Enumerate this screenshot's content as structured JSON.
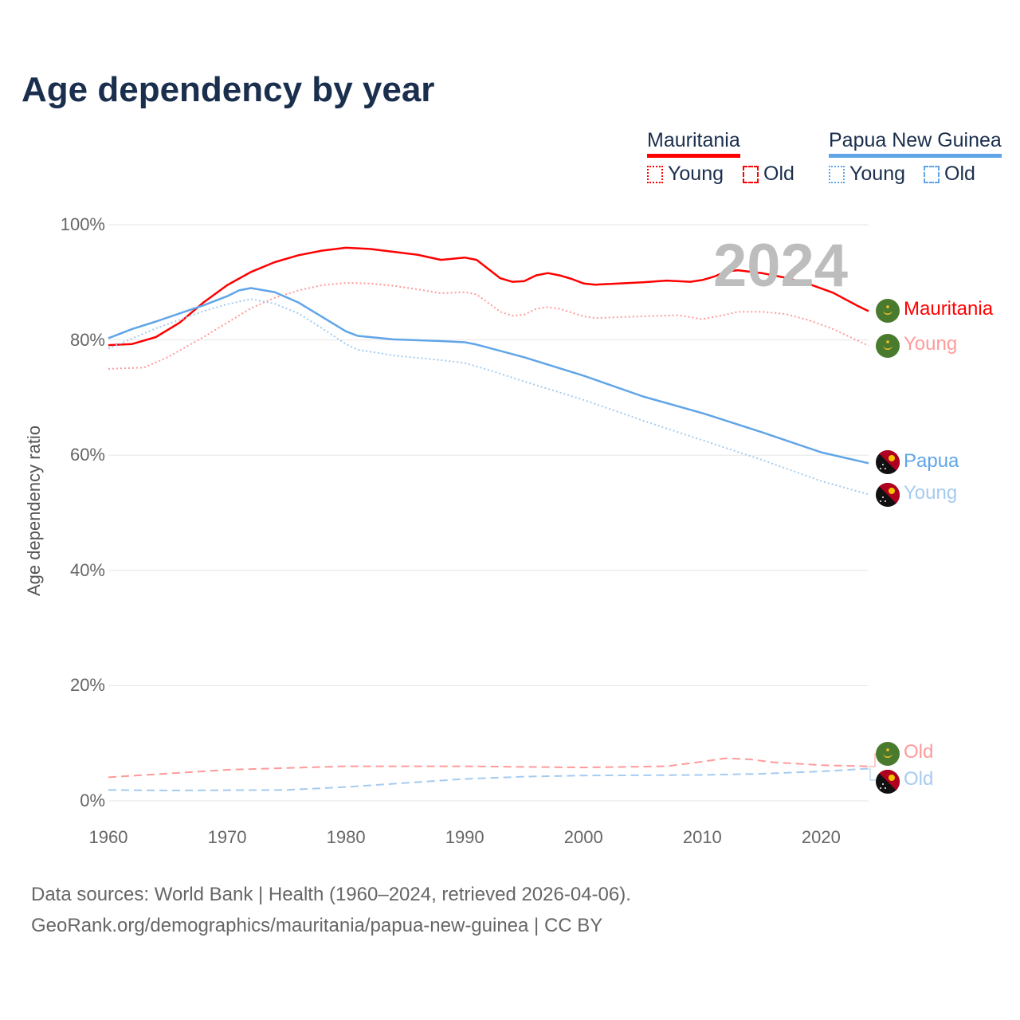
{
  "title": "Age dependency by year",
  "year_display": "2024",
  "legend": {
    "countries": [
      {
        "name": "Mauritania",
        "color": "#ff0000",
        "young": "Young",
        "old": "Old"
      },
      {
        "name": "Papua New Guinea",
        "color": "#60a5e8",
        "young": "Young",
        "old": "Old"
      }
    ]
  },
  "end_labels": {
    "mr_total": "Mauritania",
    "mr_young": "Young",
    "png_total": "Papua",
    "png_young": "Young",
    "mr_old": "Old",
    "png_old": "Old"
  },
  "footer": {
    "line1": "Data sources: World Bank | Health (1960–2024, retrieved 2026-04-06).",
    "line2": "GeoRank.org/demographics/mauritania/papua-new-guinea | CC BY"
  },
  "chart_data": {
    "type": "line",
    "title": "Age dependency by year",
    "xlabel": "",
    "ylabel": "Age dependency ratio",
    "xlim": [
      1960,
      2024
    ],
    "ylim": [
      0,
      100
    ],
    "x_ticks": [
      "1960",
      "1970",
      "1980",
      "1990",
      "2000",
      "2010",
      "2020"
    ],
    "y_ticks": [
      "0%",
      "20%",
      "40%",
      "60%",
      "80%",
      "100%"
    ],
    "grid": true,
    "legend_position": "top-right",
    "series": [
      {
        "name": "Mauritania",
        "style": "solid",
        "color": "#ff0000",
        "points": [
          [
            1960,
            79.1
          ],
          [
            1962,
            79.3
          ],
          [
            1964,
            80.5
          ],
          [
            1966,
            83
          ],
          [
            1968,
            86.5
          ],
          [
            1970,
            89.5
          ],
          [
            1972,
            91.8
          ],
          [
            1974,
            93.5
          ],
          [
            1976,
            94.7
          ],
          [
            1978,
            95.5
          ],
          [
            1980,
            96.0
          ],
          [
            1982,
            95.8
          ],
          [
            1984,
            95.3
          ],
          [
            1986,
            94.8
          ],
          [
            1988,
            93.9
          ],
          [
            1990,
            94.3
          ],
          [
            1991,
            93.9
          ],
          [
            1993,
            90.7
          ],
          [
            1994,
            90.1
          ],
          [
            1995,
            90.2
          ],
          [
            1996,
            91.2
          ],
          [
            1997,
            91.6
          ],
          [
            1998,
            91.2
          ],
          [
            1999,
            90.6
          ],
          [
            2000,
            89.8
          ],
          [
            2001,
            89.6
          ],
          [
            2005,
            90.0
          ],
          [
            2007,
            90.3
          ],
          [
            2009,
            90.1
          ],
          [
            2010,
            90.4
          ],
          [
            2011,
            91.0
          ],
          [
            2012,
            91.9
          ],
          [
            2013,
            92.1
          ],
          [
            2015,
            91.6
          ],
          [
            2017,
            90.8
          ],
          [
            2019,
            89.7
          ],
          [
            2021,
            88.2
          ],
          [
            2023,
            86.0
          ],
          [
            2024,
            85.0
          ]
        ]
      },
      {
        "name": "Mauritania Young",
        "style": "dotted",
        "color": "#ff9a9a",
        "points": [
          [
            1960,
            75.0
          ],
          [
            1963,
            75.2
          ],
          [
            1965,
            77
          ],
          [
            1968,
            80.5
          ],
          [
            1970,
            83
          ],
          [
            1972,
            85.5
          ],
          [
            1974,
            87.3
          ],
          [
            1976,
            88.6
          ],
          [
            1978,
            89.5
          ],
          [
            1980,
            89.9
          ],
          [
            1982,
            89.8
          ],
          [
            1984,
            89.4
          ],
          [
            1986,
            88.8
          ],
          [
            1988,
            88.1
          ],
          [
            1990,
            88.3
          ],
          [
            1991,
            87.9
          ],
          [
            1993,
            84.9
          ],
          [
            1994,
            84.2
          ],
          [
            1995,
            84.4
          ],
          [
            1996,
            85.4
          ],
          [
            1997,
            85.7
          ],
          [
            1998,
            85.4
          ],
          [
            2000,
            84.1
          ],
          [
            2001,
            83.8
          ],
          [
            2005,
            84.1
          ],
          [
            2008,
            84.3
          ],
          [
            2010,
            83.6
          ],
          [
            2012,
            84.4
          ],
          [
            2013,
            84.9
          ],
          [
            2015,
            84.9
          ],
          [
            2017,
            84.5
          ],
          [
            2019,
            83.4
          ],
          [
            2021,
            81.9
          ],
          [
            2024,
            79.0
          ]
        ]
      },
      {
        "name": "Mauritania Old",
        "style": "dashed",
        "color": "#ff9a9a",
        "points": [
          [
            1960,
            4.1
          ],
          [
            1970,
            5.4
          ],
          [
            1980,
            6.0
          ],
          [
            1990,
            6.0
          ],
          [
            2000,
            5.8
          ],
          [
            2007,
            6.0
          ],
          [
            2010,
            6.8
          ],
          [
            2012,
            7.4
          ],
          [
            2014,
            7.2
          ],
          [
            2016,
            6.7
          ],
          [
            2020,
            6.2
          ],
          [
            2024,
            6.0
          ]
        ]
      },
      {
        "name": "Papua New Guinea",
        "style": "solid",
        "color": "#60a5e8",
        "points": [
          [
            1960,
            80.3
          ],
          [
            1962,
            81.9
          ],
          [
            1964,
            83.2
          ],
          [
            1966,
            84.6
          ],
          [
            1968,
            86.0
          ],
          [
            1970,
            87.6
          ],
          [
            1971,
            88.6
          ],
          [
            1972,
            89.0
          ],
          [
            1974,
            88.3
          ],
          [
            1976,
            86.5
          ],
          [
            1978,
            84.0
          ],
          [
            1980,
            81.5
          ],
          [
            1981,
            80.7
          ],
          [
            1984,
            80.1
          ],
          [
            1988,
            79.8
          ],
          [
            1990,
            79.6
          ],
          [
            1991,
            79.2
          ],
          [
            1995,
            77.0
          ],
          [
            2000,
            73.8
          ],
          [
            2005,
            70.2
          ],
          [
            2010,
            67.3
          ],
          [
            2015,
            64.0
          ],
          [
            2020,
            60.5
          ],
          [
            2024,
            58.6
          ]
        ]
      },
      {
        "name": "Papua New Guinea Young",
        "style": "dotted",
        "color": "#a4cbf0",
        "points": [
          [
            1960,
            78.5
          ],
          [
            1964,
            82
          ],
          [
            1968,
            85
          ],
          [
            1970,
            86.2
          ],
          [
            1972,
            87.1
          ],
          [
            1974,
            86.3
          ],
          [
            1976,
            84.6
          ],
          [
            1978,
            82
          ],
          [
            1980,
            79.3
          ],
          [
            1981,
            78.3
          ],
          [
            1984,
            77.3
          ],
          [
            1988,
            76.5
          ],
          [
            1990,
            76
          ],
          [
            1992,
            74.8
          ],
          [
            1995,
            72.8
          ],
          [
            2000,
            69.6
          ],
          [
            2005,
            66
          ],
          [
            2010,
            62.6
          ],
          [
            2015,
            59.2
          ],
          [
            2020,
            55.5
          ],
          [
            2024,
            53.2
          ]
        ]
      },
      {
        "name": "Papua New Guinea Old",
        "style": "dashed",
        "color": "#a4cbf0",
        "points": [
          [
            1960,
            1.9
          ],
          [
            1965,
            1.8
          ],
          [
            1975,
            1.9
          ],
          [
            1980,
            2.4
          ],
          [
            1990,
            3.8
          ],
          [
            1995,
            4.2
          ],
          [
            2000,
            4.4
          ],
          [
            2010,
            4.5
          ],
          [
            2015,
            4.7
          ],
          [
            2020,
            5.1
          ],
          [
            2024,
            5.6
          ]
        ]
      }
    ]
  }
}
